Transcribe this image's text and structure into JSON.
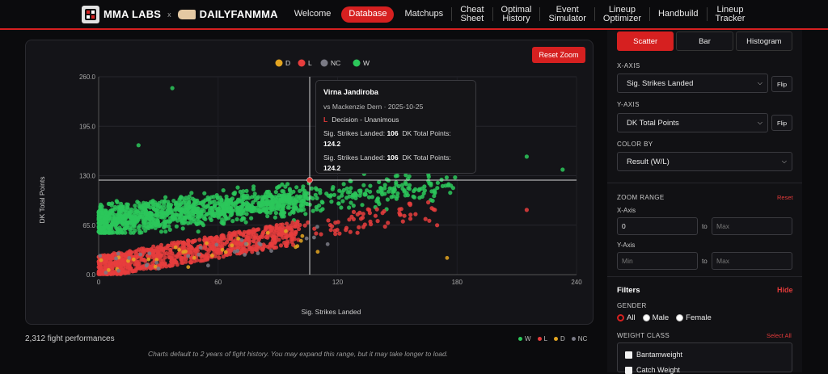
{
  "brand": {
    "name": "MMA LABS",
    "separator": "x",
    "partner": "DAILYFANMMA"
  },
  "nav": [
    {
      "label": "Welcome",
      "active": false
    },
    {
      "label": "Database",
      "active": true
    },
    {
      "label": "Matchups",
      "active": false
    },
    {
      "label": "Cheat\nSheet",
      "active": false
    },
    {
      "label": "Optimal\nHistory",
      "active": false
    },
    {
      "label": "Event\nSimulator",
      "active": false
    },
    {
      "label": "Lineup\nOptimizer",
      "active": false
    },
    {
      "label": "Handbuild",
      "active": false
    },
    {
      "label": "Lineup\nTracker",
      "active": false
    }
  ],
  "chart": {
    "reset_zoom": "Reset Zoom",
    "legend": [
      {
        "label": "D",
        "color": "#e3a521"
      },
      {
        "label": "L",
        "color": "#e63d3d"
      },
      {
        "label": "NC",
        "color": "#7a7a85"
      },
      {
        "label": "W",
        "color": "#2cc75a"
      }
    ],
    "tooltip": {
      "name": "Virna Jandiroba",
      "sub": "vs Mackenzie Dern · 2025-10-25",
      "result": "L",
      "method": "Decision - Unanimous",
      "line1_a": "Sig. Strikes Landed:",
      "line1_b": "106",
      "line1_c": "DK Total Points:",
      "line1_d": "124.2",
      "line2_a": "Sig. Strikes Landed:",
      "line2_b": "106",
      "line2_c": "DK Total Points:",
      "line2_d": "124.2"
    }
  },
  "chart_data": {
    "type": "scatter",
    "title": "",
    "xlabel": "Sig. Strikes Landed",
    "ylabel": "DK Total Points",
    "xlim": [
      0,
      240
    ],
    "ylim": [
      0,
      260
    ],
    "x_ticks": [
      "0",
      "60",
      "120",
      "180",
      "240"
    ],
    "y_ticks": [
      "0.0",
      "65.0",
      "130.0",
      "195.0",
      "260.0"
    ],
    "legend_position": "top-center",
    "crosshair": {
      "x": 106,
      "y": 124.2
    },
    "series": [
      {
        "name": "W",
        "color": "#2cc75a",
        "count_approx": 1300,
        "description": "Upper band: points roughly 55-150 for x 0-100, sparse outliers to 245 at x=37",
        "notable_points": [
          [
            37,
            245
          ],
          [
            20,
            170
          ],
          [
            215,
            155
          ],
          [
            233,
            138
          ],
          [
            150,
            130
          ]
        ]
      },
      {
        "name": "L",
        "color": "#e63d3d",
        "count_approx": 950,
        "description": "Lower wedge: points 0-60 for low x rising with x",
        "notable_points": [
          [
            106,
            124.2
          ],
          [
            215,
            85
          ],
          [
            170,
            65
          ],
          [
            130,
            55
          ]
        ]
      },
      {
        "name": "D",
        "color": "#e3a521",
        "count_approx": 30,
        "notable_points": [
          [
            25,
            20
          ],
          [
            45,
            10
          ],
          [
            85,
            55
          ],
          [
            110,
            30
          ],
          [
            175,
            22
          ]
        ]
      },
      {
        "name": "NC",
        "color": "#7a7a85",
        "count_approx": 30,
        "notable_points": [
          [
            10,
            5
          ],
          [
            30,
            8
          ],
          [
            55,
            12
          ],
          [
            80,
            28
          ],
          [
            115,
            40
          ]
        ]
      }
    ]
  },
  "footer": {
    "count": "2,312 fight performances",
    "legend": [
      {
        "label": "W",
        "color": "#2cc75a"
      },
      {
        "label": "L",
        "color": "#e63d3d"
      },
      {
        "label": "D",
        "color": "#e3a521"
      },
      {
        "label": "NC",
        "color": "#7a7a85"
      }
    ],
    "note": "Charts default to 2 years of fight history. You may expand this range, but it may take longer to load."
  },
  "panel": {
    "tabs": [
      {
        "label": "Scatter",
        "active": true
      },
      {
        "label": "Bar",
        "active": false
      },
      {
        "label": "Histogram",
        "active": false
      }
    ],
    "x_axis_label": "X-AXIS",
    "x_axis_value": "Sig. Strikes Landed",
    "y_axis_label": "Y-AXIS",
    "y_axis_value": "DK Total Points",
    "flip_label": "Flip",
    "color_by_label": "COLOR BY",
    "color_by_value": "Result (W/L)",
    "zoom_label": "ZOOM RANGE",
    "zoom_reset": "Reset",
    "zoom_x_label": "X-Axis",
    "zoom_x_min": "0",
    "zoom_x_max_placeholder": "Max",
    "zoom_y_label": "Y-Axis",
    "zoom_y_min_placeholder": "Min",
    "zoom_y_max_placeholder": "Max",
    "to": "to",
    "filters_title": "Filters",
    "filters_hide": "Hide",
    "gender_label": "GENDER",
    "gender_options": [
      "All",
      "Male",
      "Female"
    ],
    "gender_selected": "All",
    "weight_class_label": "WEIGHT CLASS",
    "weight_select_all": "Select All",
    "weight_classes": [
      "Bantamweight",
      "Catch Weight"
    ]
  }
}
